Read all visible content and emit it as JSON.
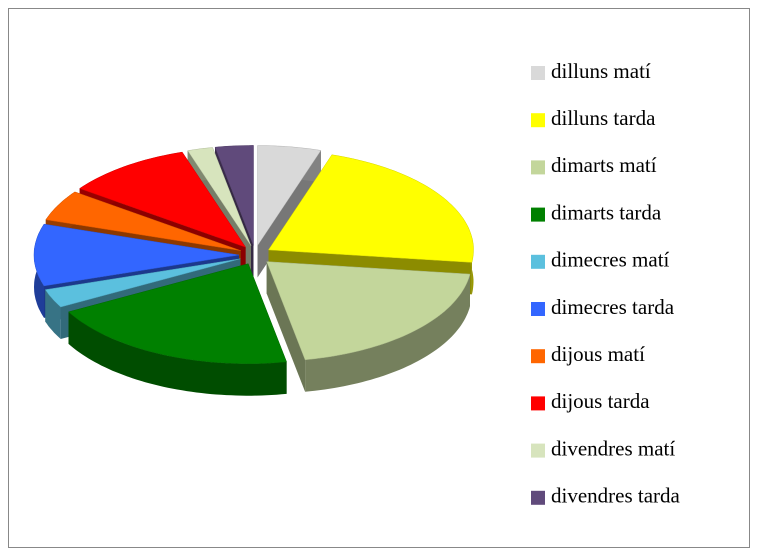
{
  "chart_data": {
    "type": "pie",
    "style": "3d-exploded",
    "categories": [
      "dilluns matí",
      "dilluns tarda",
      "dimarts matí",
      "dimarts tarda",
      "dimecres matí",
      "dimecres tarda",
      "dijous matí",
      "dijous tarda",
      "divendres matí",
      "divendres tarda"
    ],
    "values": [
      5,
      22,
      20,
      20,
      3,
      10,
      5,
      10,
      2,
      3
    ],
    "colors": [
      "#d9d9d9",
      "#ffff00",
      "#c3d69b",
      "#008000",
      "#5bc0de",
      "#3366ff",
      "#ff6600",
      "#ff0000",
      "#d7e4bd",
      "#604a7b"
    ],
    "legend": "right"
  }
}
